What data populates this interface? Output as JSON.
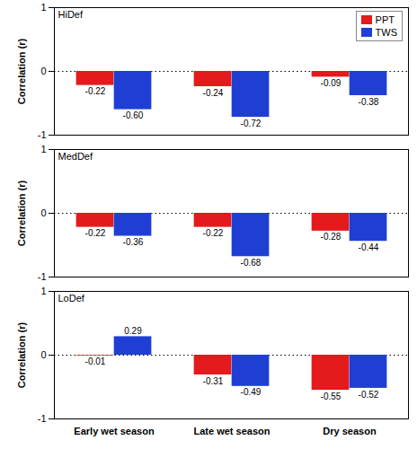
{
  "chart_data": [
    {
      "type": "bar",
      "title": "HiDef",
      "ylabel": "Correlation (r)",
      "categories": [
        "Early wet season",
        "Late wet season",
        "Dry season"
      ],
      "series": [
        {
          "name": "PPT",
          "color": "#e41a1c",
          "values": [
            -0.22,
            -0.24,
            -0.09
          ],
          "value_labels": [
            "-0.22",
            "-0.24",
            "-0.09"
          ]
        },
        {
          "name": "TWS",
          "color": "#1f3fd4",
          "values": [
            -0.6,
            -0.72,
            -0.38
          ],
          "value_labels": [
            "-0.60",
            "-0.72",
            "-0.38"
          ]
        }
      ],
      "ylim": [
        -1,
        1
      ],
      "yticks": [
        -1,
        0,
        1
      ],
      "data_labels": true,
      "legend": "upper right",
      "tick_labels": "y"
    },
    {
      "type": "bar",
      "title": "MedDef",
      "ylabel": "Correlation (r)",
      "categories": [
        "Early wet season",
        "Late wet season",
        "Dry season"
      ],
      "series": [
        {
          "name": "PPT",
          "color": "#e41a1c",
          "values": [
            -0.22,
            -0.22,
            -0.28
          ],
          "value_labels": [
            "-0.22",
            "-0.22",
            "-0.28"
          ]
        },
        {
          "name": "TWS",
          "color": "#1f3fd4",
          "values": [
            -0.36,
            -0.68,
            -0.44
          ],
          "value_labels": [
            "-0.36",
            "-0.68",
            "-0.44"
          ]
        }
      ],
      "ylim": [
        -1,
        1
      ],
      "yticks": [
        -1,
        0,
        1
      ],
      "data_labels": true,
      "tick_labels": "y"
    },
    {
      "type": "bar",
      "title": "LoDef",
      "ylabel": "Correlation (r)",
      "categories": [
        "Early wet season",
        "Late wet season",
        "Dry season"
      ],
      "series": [
        {
          "name": "PPT",
          "color": "#e41a1c",
          "values": [
            -0.01,
            -0.31,
            -0.55
          ],
          "value_labels": [
            "-0.01",
            "-0.31",
            "-0.55"
          ]
        },
        {
          "name": "TWS",
          "color": "#1f3fd4",
          "values": [
            0.29,
            -0.49,
            -0.52
          ],
          "value_labels": [
            "0.29",
            "-0.49",
            "-0.52"
          ]
        }
      ],
      "ylim": [
        -1,
        1
      ],
      "yticks": [
        -1,
        0,
        1
      ],
      "data_labels": true
    }
  ]
}
